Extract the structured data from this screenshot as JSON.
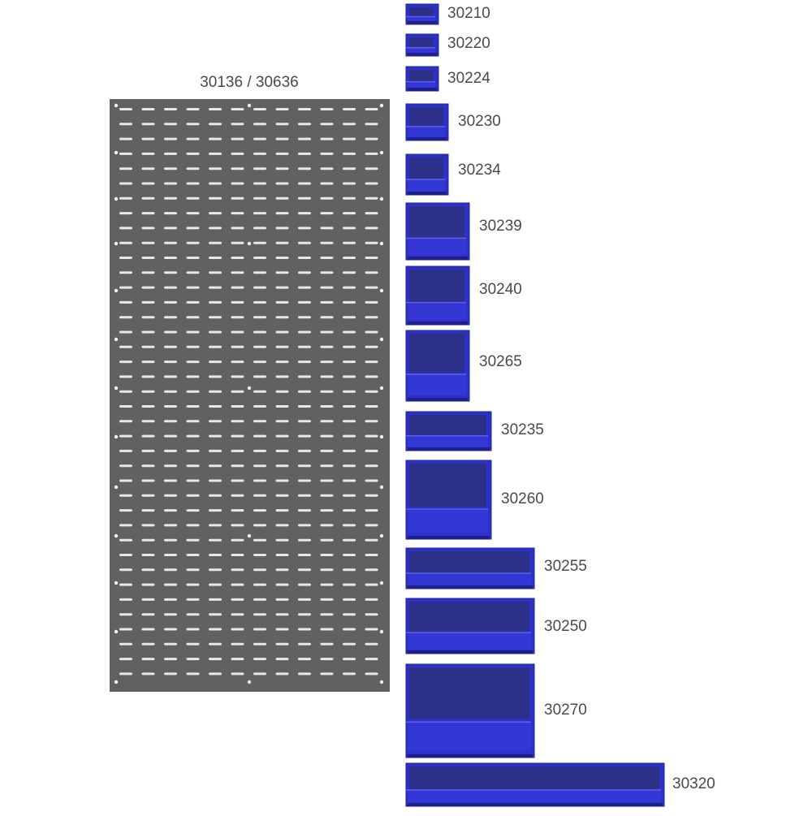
{
  "panel": {
    "label": "30136 / 30636"
  },
  "bins": [
    {
      "label": "30210"
    },
    {
      "label": "30220"
    },
    {
      "label": "30224"
    },
    {
      "label": "30230"
    },
    {
      "label": "30234"
    },
    {
      "label": "30239"
    },
    {
      "label": "30240"
    },
    {
      "label": "30265"
    },
    {
      "label": "30235"
    },
    {
      "label": "30260"
    },
    {
      "label": "30255"
    },
    {
      "label": "30250"
    },
    {
      "label": "30270"
    },
    {
      "label": "30320"
    }
  ]
}
